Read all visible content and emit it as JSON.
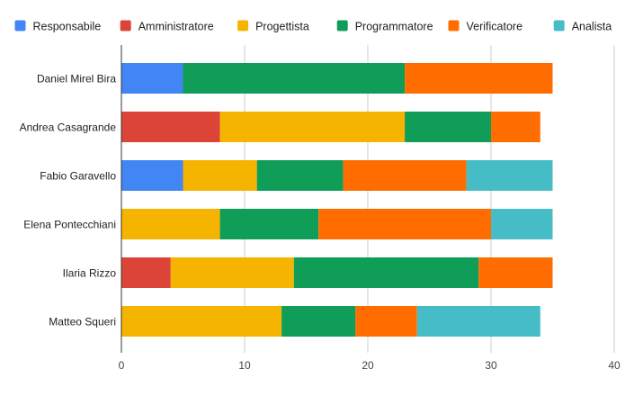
{
  "chart_data": {
    "type": "bar",
    "orientation": "horizontal",
    "stacked": true,
    "categories": [
      "Daniel Mirel Bira",
      "Andrea Casagrande",
      "Fabio Garavello",
      "Elena Pontecchiani",
      "Ilaria Rizzo",
      "Matteo Squeri"
    ],
    "series": [
      {
        "name": "Responsabile",
        "color": "#4285f4",
        "values": [
          5,
          0,
          5,
          0,
          0,
          0
        ]
      },
      {
        "name": "Amministratore",
        "color": "#db4437",
        "values": [
          0,
          8,
          0,
          0,
          4,
          0
        ]
      },
      {
        "name": "Progettista",
        "color": "#f4b400",
        "values": [
          0,
          15,
          6,
          8,
          10,
          13
        ]
      },
      {
        "name": "Programmatore",
        "color": "#0f9d58",
        "values": [
          18,
          7,
          7,
          8,
          15,
          6
        ]
      },
      {
        "name": "Verificatore",
        "color": "#ff6d01",
        "values": [
          12,
          4,
          10,
          14,
          6,
          5
        ]
      },
      {
        "name": "Analista",
        "color": "#46bdc6",
        "values": [
          0,
          0,
          7,
          5,
          0,
          10
        ]
      }
    ],
    "xlim": [
      0,
      40
    ],
    "xticks": [
      0,
      10,
      20,
      30,
      40
    ],
    "grid": true,
    "legend_position": "top"
  }
}
